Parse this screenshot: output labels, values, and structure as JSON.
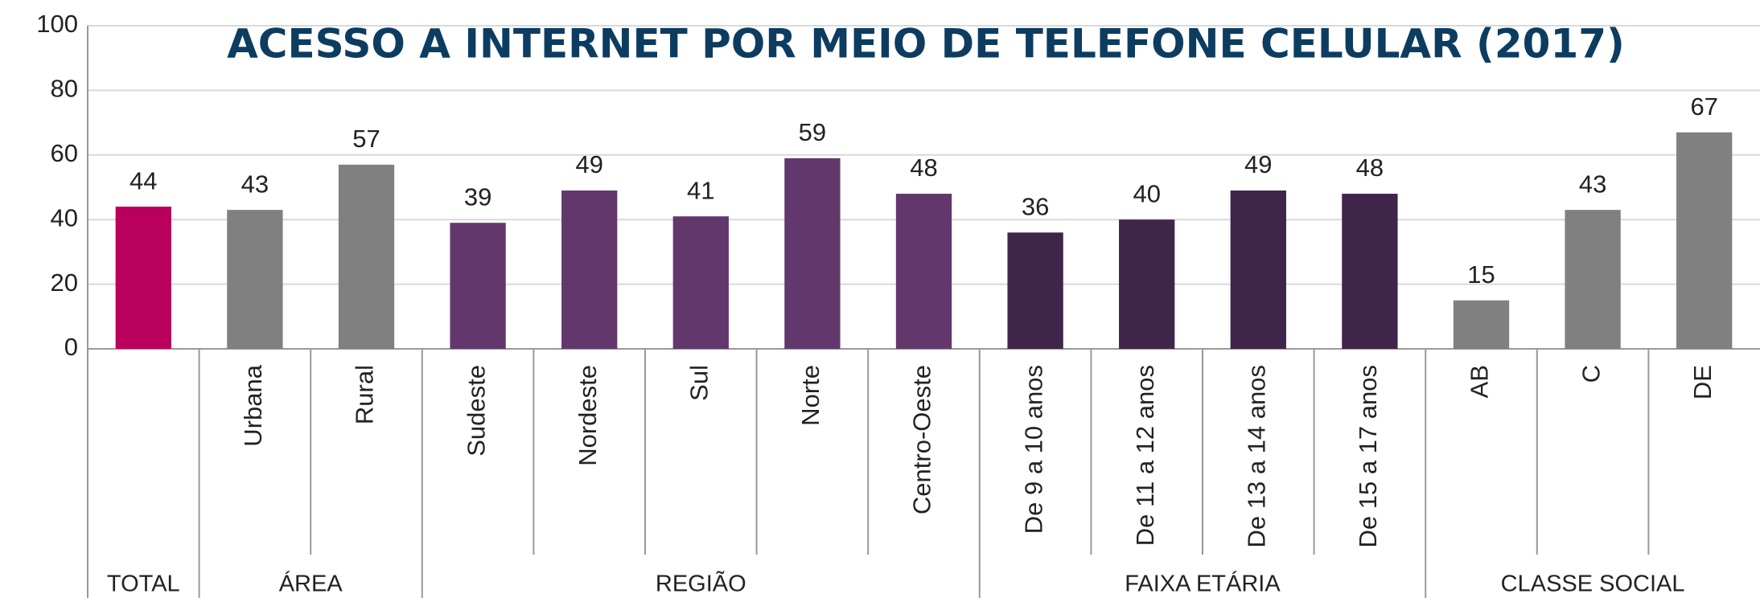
{
  "chart_data": {
    "type": "bar",
    "title": "ACESSO A INTERNET POR MEIO DE TELEFONE CELULAR (2017)",
    "categories": [
      null,
      "Urbana",
      "Rural",
      "Sudeste",
      "Nordeste",
      "Sul",
      "Norte",
      "Centro-Oeste",
      "De 9 a 10 anos",
      "De 11 a 12 anos",
      "De 13 a 14 anos",
      "De 15 a 17 anos",
      "AB",
      "C",
      "DE"
    ],
    "values": [
      44,
      43,
      57,
      39,
      49,
      41,
      59,
      48,
      36,
      40,
      49,
      48,
      15,
      43,
      67
    ],
    "colors": [
      "#b8005c",
      "#808080",
      "#808080",
      "#62386c",
      "#62386c",
      "#62386c",
      "#62386c",
      "#62386c",
      "#40254a",
      "#40254a",
      "#40254a",
      "#40254a",
      "#808080",
      "#808080",
      "#808080"
    ],
    "groups": [
      {
        "label": "TOTAL",
        "span": 1
      },
      {
        "label": "ÁREA",
        "span": 2
      },
      {
        "label": "REGIÃO",
        "span": 5
      },
      {
        "label": "FAIXA ETÁRIA",
        "span": 4
      },
      {
        "label": "CLASSE SOCIAL",
        "span": 3
      }
    ],
    "ylim": [
      0,
      100
    ],
    "yticks": [
      0,
      20,
      40,
      60,
      80,
      100
    ],
    "grid": true
  }
}
